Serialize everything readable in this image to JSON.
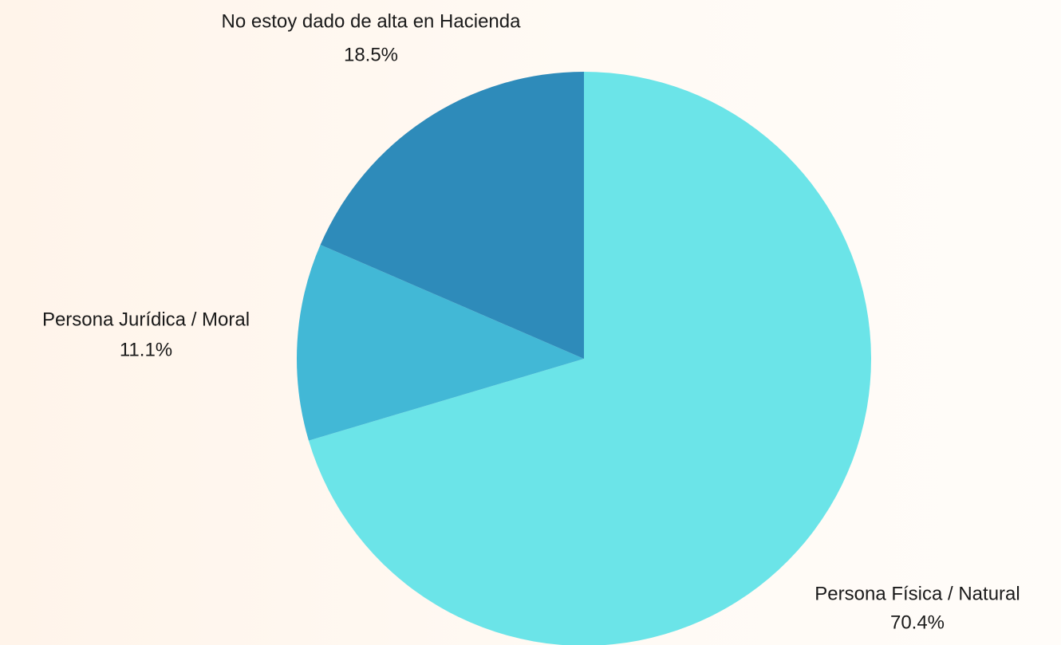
{
  "chart_data": {
    "type": "pie",
    "categories": [
      "Persona Física / Natural",
      "Persona Jurídica / Moral",
      "No estoy dado de alta en Hacienda"
    ],
    "values": [
      70.4,
      11.1,
      18.5
    ],
    "value_labels": [
      "70.4%",
      "11.1%",
      "18.5%"
    ],
    "colors": [
      "#6be4e8",
      "#42b8d6",
      "#2e8bba"
    ]
  }
}
